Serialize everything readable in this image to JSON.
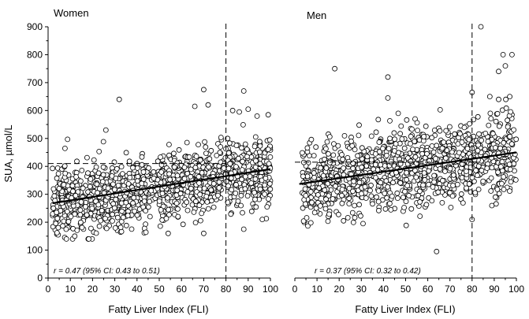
{
  "chart_data": [
    {
      "type": "scatter",
      "title": "Women",
      "xlabel": "Fatty Liver Index (FLI)",
      "ylabel": "SUA, µmol/L",
      "xlim": [
        0,
        100
      ],
      "ylim": [
        0,
        900
      ],
      "xticks": [
        "0",
        "10",
        "20",
        "30",
        "40",
        "50",
        "60",
        "70",
        "80",
        "90",
        "100"
      ],
      "yticks": [
        "0",
        "100",
        "200",
        "300",
        "400",
        "500",
        "600",
        "700",
        "800",
        "900"
      ],
      "grid": false,
      "annotation": "r = 0.47 (95% CI: 0.43 to 0.51)",
      "reference_lines": {
        "vertical_x": 80,
        "horizontal_y": 410
      },
      "trend": {
        "x": [
          2,
          100
        ],
        "y": [
          268,
          390
        ]
      },
      "scatter_model": {
        "n": 1200,
        "x_range": [
          2,
          100
        ],
        "spread": 62,
        "seed": 11
      },
      "outliers": [
        {
          "x": 32,
          "y": 640
        },
        {
          "x": 70,
          "y": 675
        },
        {
          "x": 88,
          "y": 670
        },
        {
          "x": 66,
          "y": 615
        },
        {
          "x": 72,
          "y": 620
        },
        {
          "x": 83,
          "y": 600
        },
        {
          "x": 90,
          "y": 605
        },
        {
          "x": 99,
          "y": 585
        },
        {
          "x": 86,
          "y": 595
        },
        {
          "x": 26,
          "y": 530
        },
        {
          "x": 94,
          "y": 580
        },
        {
          "x": 12,
          "y": 150
        },
        {
          "x": 70,
          "y": 160
        },
        {
          "x": 88,
          "y": 175
        },
        {
          "x": 54,
          "y": 160
        }
      ]
    },
    {
      "type": "scatter",
      "title": "Men",
      "xlabel": "Fatty Liver Index (FLI)",
      "ylabel": "",
      "xlim": [
        0,
        100
      ],
      "ylim": [
        0,
        900
      ],
      "xticks": [
        "0",
        "10",
        "20",
        "30",
        "40",
        "50",
        "60",
        "70",
        "80",
        "90",
        "100"
      ],
      "yticks": [],
      "grid": false,
      "annotation": "r = 0.37 (95% CI: 0.32 to 0.42)",
      "reference_lines": {
        "vertical_x": 80,
        "horizontal_y": 415
      },
      "trend": {
        "x": [
          2,
          100
        ],
        "y": [
          337,
          450
        ]
      },
      "scatter_model": {
        "n": 1200,
        "x_range": [
          3,
          100
        ],
        "spread": 68,
        "seed": 29
      },
      "outliers": [
        {
          "x": 84,
          "y": 900
        },
        {
          "x": 18,
          "y": 750
        },
        {
          "x": 42,
          "y": 720
        },
        {
          "x": 94,
          "y": 800
        },
        {
          "x": 98,
          "y": 800
        },
        {
          "x": 95,
          "y": 760
        },
        {
          "x": 92,
          "y": 740
        },
        {
          "x": 80,
          "y": 665
        },
        {
          "x": 42,
          "y": 645
        },
        {
          "x": 97,
          "y": 650
        },
        {
          "x": 88,
          "y": 650
        },
        {
          "x": 64,
          "y": 95
        },
        {
          "x": 22,
          "y": 205
        },
        {
          "x": 80,
          "y": 210
        },
        {
          "x": 92,
          "y": 640
        }
      ]
    }
  ]
}
